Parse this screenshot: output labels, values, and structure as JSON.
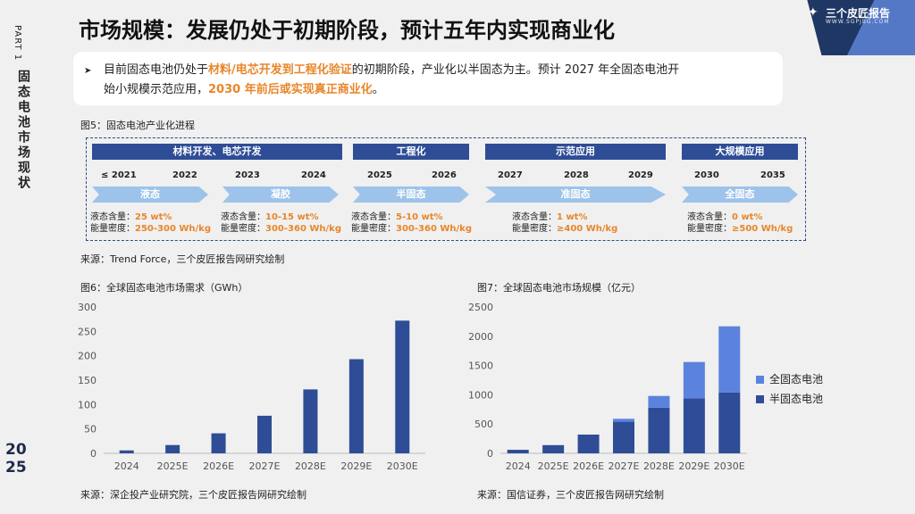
{
  "side": {
    "part": "PART 1",
    "title": "固态电池市场现状",
    "year_top": "20",
    "year_bottom": "25"
  },
  "title": "市场规模：发展仍处于初期阶段，预计五年内实现商业化",
  "logo": {
    "name": "三个皮匠报告",
    "url_text": "WWW.SGPJBG.COM"
  },
  "callout": {
    "p1_a": "目前固态电池仍处于",
    "p1_b": "材料/电芯开发到工程化验证",
    "p1_c": "的初期阶段，产业化以半固态为主。预计 2027 年全固态电池开",
    "p2_a": "始小规模示范应用，",
    "p2_b": "2030 年前后或实现真正商业化",
    "p2_c": "。"
  },
  "fig5": {
    "label": "图5：固态电池产业化进程",
    "bands": [
      "材料开发、电芯开发",
      "工程化",
      "示范应用",
      "大规模应用"
    ],
    "years": [
      "≤ 2021",
      "2022",
      "2023",
      "2024",
      "2025",
      "2026",
      "2027",
      "2028",
      "2029",
      "2030",
      "2035"
    ],
    "stages": [
      "液态",
      "凝胶",
      "半固态",
      "准固态",
      "全固态"
    ],
    "specs": [
      {
        "l1": "液态含量：",
        "v1": "25 wt%",
        "l2": "能量密度：",
        "v2": "250-300 Wh/kg"
      },
      {
        "l1": "液态含量：",
        "v1": "10-15 wt%",
        "l2": "能量密度：",
        "v2": "300-360 Wh/kg"
      },
      {
        "l1": "液态含量：",
        "v1": "5-10 wt%",
        "l2": "能量密度：",
        "v2": "300-360 Wh/kg"
      },
      {
        "l1": "液态含量：",
        "v1": "1 wt%",
        "l2": "能量密度：",
        "v2": "≥400 Wh/kg"
      },
      {
        "l1": "液态含量：",
        "v1": "0 wt%",
        "l2": "能量密度：",
        "v2": "≥500 Wh/kg"
      }
    ],
    "source": "来源：Trend Force，三个皮匠报告网研究绘制"
  },
  "fig6": {
    "label": "图6：全球固态电池市场需求（GWh）",
    "source": "来源：深企投产业研究院，三个皮匠报告网研究绘制"
  },
  "fig7": {
    "label": "图7：全球固态电池市场规模（亿元）",
    "source": "来源：国信证券，三个皮匠报告网研究绘制"
  },
  "colors": {
    "navy": "#2f4d96",
    "light_blue": "#5b83de",
    "accent": "#e8862a"
  },
  "chart_data": [
    {
      "type": "bar",
      "categories": [
        "2024",
        "2025E",
        "2026E",
        "2027E",
        "2028E",
        "2029E",
        "2030E"
      ],
      "values": [
        6,
        17,
        41,
        77,
        131,
        193,
        272
      ],
      "ylim": [
        0,
        300
      ],
      "yticks": [
        0,
        50,
        100,
        150,
        200,
        250,
        300
      ],
      "grid": false
    },
    {
      "type": "bar",
      "stacked": true,
      "categories": [
        "2024",
        "2025E",
        "2026E",
        "2027E",
        "2028E",
        "2029E",
        "2030E"
      ],
      "series": [
        {
          "name": "半固态电池",
          "values": [
            60,
            140,
            320,
            540,
            780,
            940,
            1040
          ],
          "color": "#2f4d96"
        },
        {
          "name": "全固态电池",
          "values": [
            0,
            0,
            0,
            50,
            200,
            620,
            1130
          ],
          "color": "#5b83de"
        }
      ],
      "ylim": [
        0,
        2500
      ],
      "yticks": [
        0,
        500,
        1000,
        1500,
        2000,
        2500
      ],
      "legend": "right",
      "grid": false
    }
  ]
}
